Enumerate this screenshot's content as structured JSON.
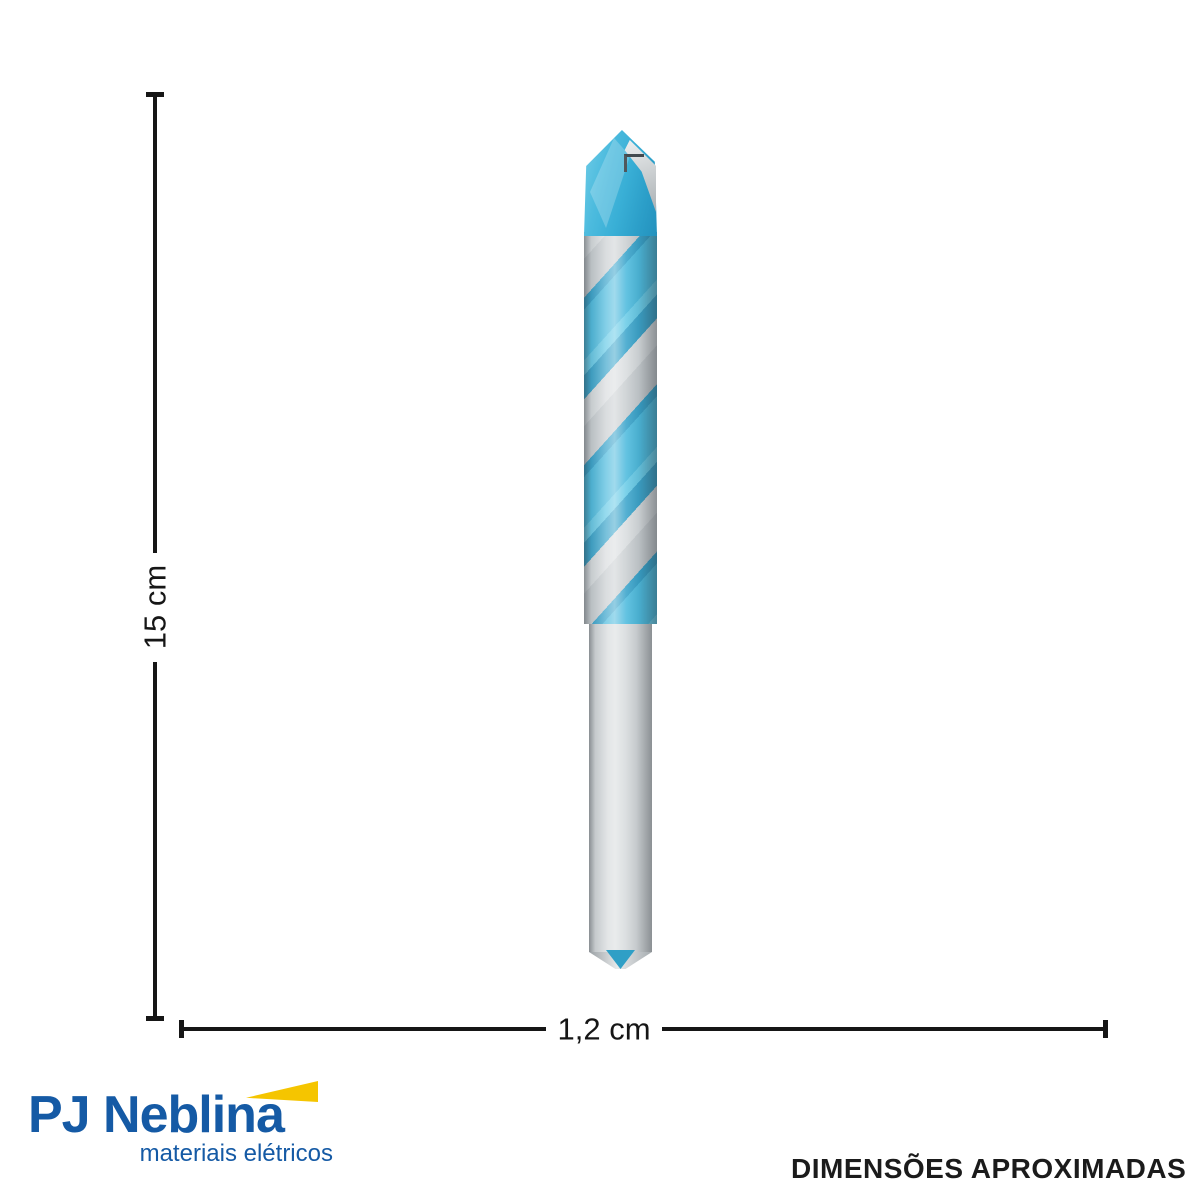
{
  "image": {
    "type": "product-dimension-illustration",
    "background": "#ffffff"
  },
  "dimensions": {
    "height": {
      "label": "15 cm"
    },
    "width": {
      "label": "1,2 cm"
    },
    "line_color": "#161616"
  },
  "product": {
    "name": "drill-bit",
    "colors": {
      "flute_blue": "#41b6db",
      "flute_blue_dark": "#2b9dc7",
      "tip_blue": "#39afd6",
      "metal_light": "#f2f4f5",
      "metal_mid": "#c6cbce",
      "metal_dark": "#888d91"
    }
  },
  "branding": {
    "logo_name": "PJ Neblina",
    "tagline": "materiais elétricos",
    "logo_blue": "#155aa5",
    "logo_yellow": "#f5c500"
  },
  "disclaimer": {
    "text": "DIMENSÕES APROXIMADAS"
  }
}
